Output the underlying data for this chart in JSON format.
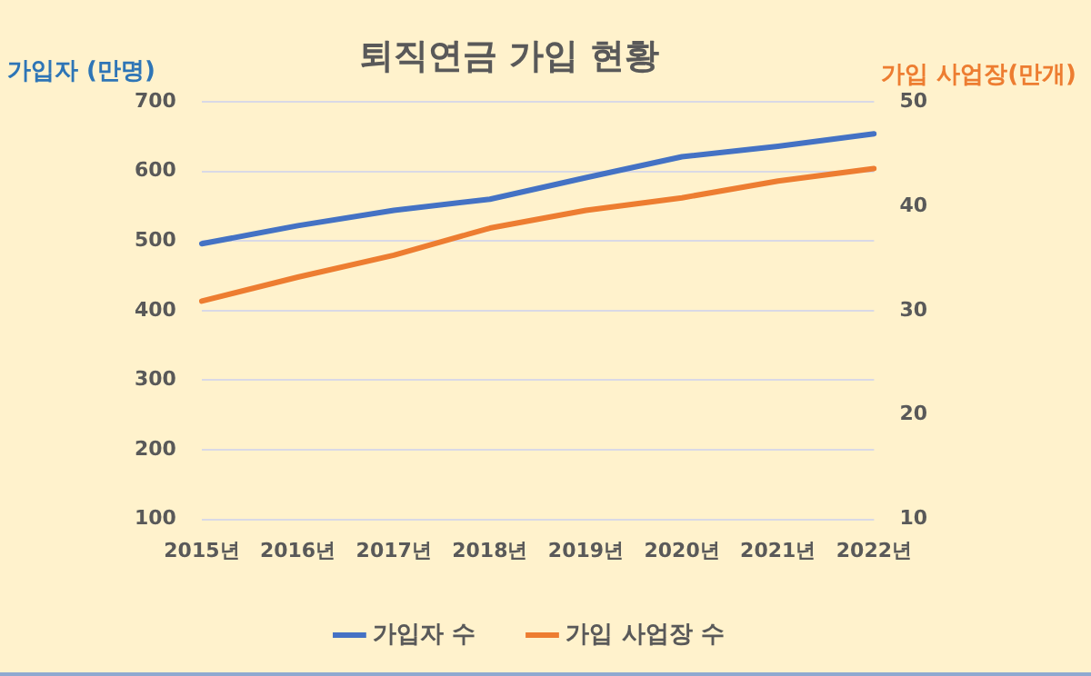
{
  "chart_data": {
    "type": "line",
    "title": "퇴직연금 가입 현황",
    "ylabel": "가입자 (만명)",
    "y2label": "가입 사업장(만개)",
    "categories": [
      "2015년",
      "2016년",
      "2017년",
      "2018년",
      "2019년",
      "2020년",
      "2021년",
      "2022년"
    ],
    "series": [
      {
        "name": "가입자 수",
        "color": "#4472c4",
        "values": [
          496,
          522,
          544,
          560,
          591,
          621,
          636,
          654
        ]
      },
      {
        "name": "가입 사업장 수",
        "color": "#ed7d31",
        "axis": "y2",
        "values": [
          30.9,
          33.2,
          35.3,
          37.9,
          39.6,
          40.8,
          42.4,
          43.6
        ]
      }
    ],
    "ylim": [
      100,
      700
    ],
    "yticks": [
      100,
      200,
      300,
      400,
      500,
      600,
      700
    ],
    "y2lim": [
      10,
      50
    ],
    "y2ticks": [
      10,
      20,
      30,
      40,
      50
    ],
    "grid": "y",
    "legend": "bottom",
    "marker": "none",
    "line_style": "solid"
  }
}
